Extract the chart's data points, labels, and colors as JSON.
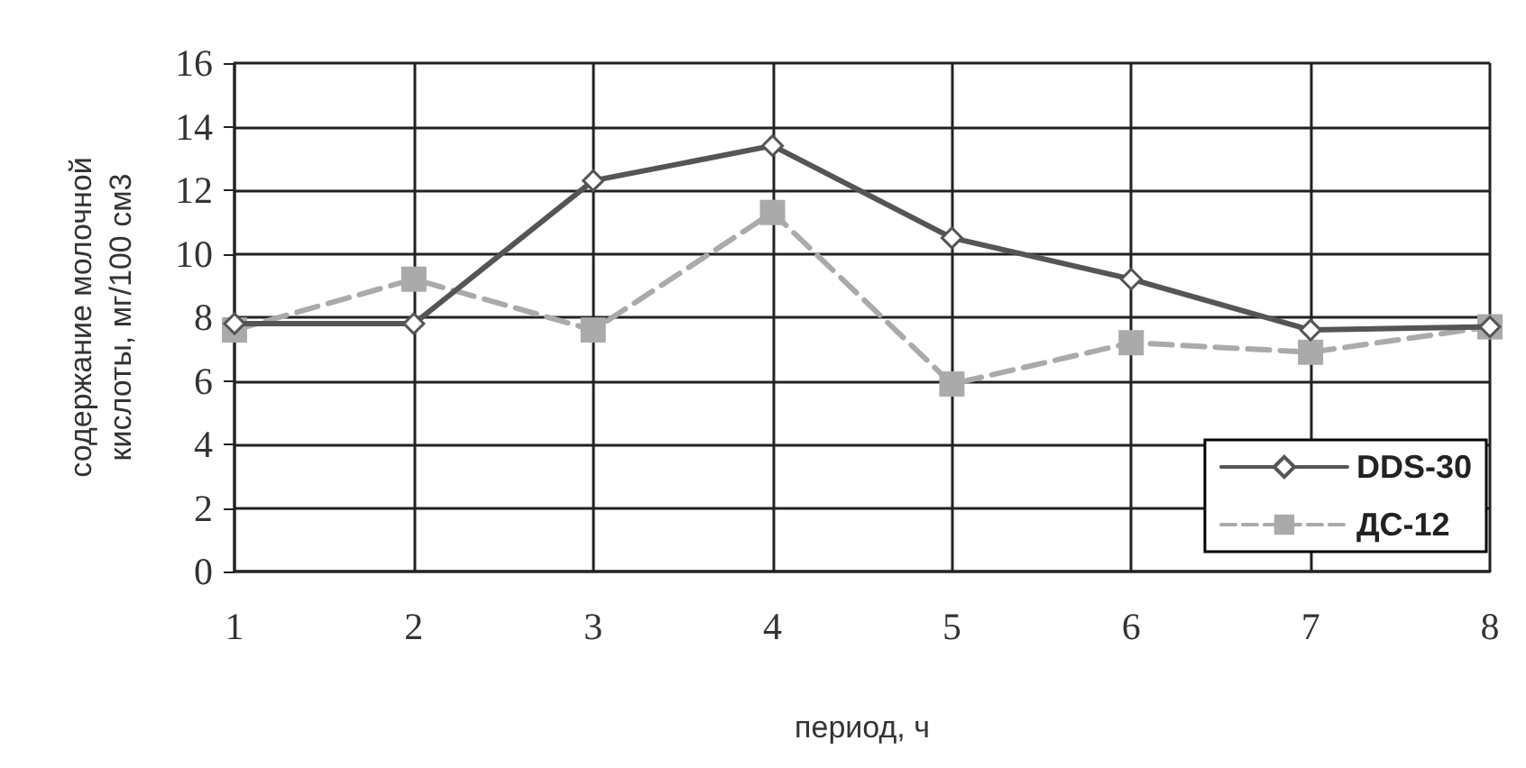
{
  "chart_data": {
    "type": "line",
    "xlabel": "период, ч",
    "ylabel": "содержание молочной\nкислоты, мг/100 см3",
    "categories": [
      "1",
      "2",
      "3",
      "4",
      "5",
      "6",
      "7",
      "8"
    ],
    "series": [
      {
        "name": "DDS-30",
        "color": "#555555",
        "marker": "diamond",
        "line_style": "solid",
        "values": [
          7.8,
          7.8,
          12.3,
          13.4,
          10.5,
          9.2,
          7.6,
          7.7
        ]
      },
      {
        "name": "ДС-12",
        "color": "#aaaaaa",
        "marker": "square",
        "line_style": "dashed",
        "values": [
          7.6,
          9.2,
          7.6,
          11.3,
          5.9,
          7.2,
          6.9,
          7.7
        ]
      }
    ],
    "ylim": [
      0,
      16
    ],
    "yticks": [
      0,
      2,
      4,
      6,
      8,
      10,
      12,
      14,
      16
    ],
    "grid": true,
    "legend": "bottom right"
  }
}
